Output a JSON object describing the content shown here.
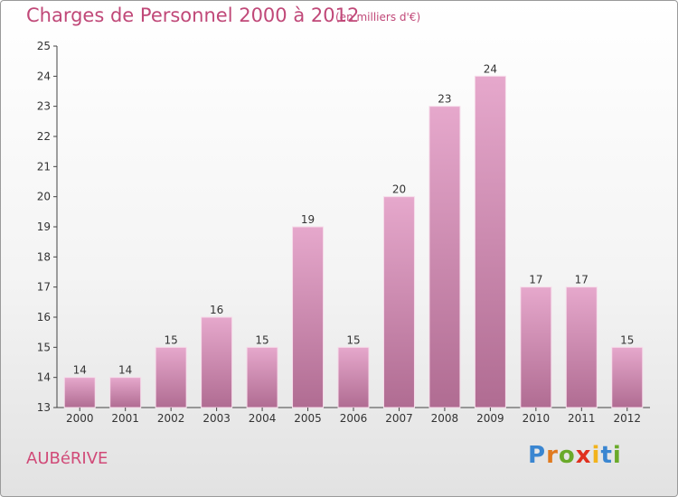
{
  "header": {
    "title": "Charges de Personnel 2000 à 2012",
    "unit_note": "(en milliers d'€)"
  },
  "footer": {
    "commune": "AUBéRIVE",
    "logo": [
      "P",
      "r",
      "o",
      "x",
      "i",
      "t",
      "i"
    ],
    "logo_colors": [
      "#3a86d1",
      "#e07a1f",
      "#6aaa2a",
      "#e0301e",
      "#f2b31c",
      "#3a86d1",
      "#6aaa2a"
    ]
  },
  "colors": {
    "bar_top": "#e6a8cc",
    "bar_bottom": "#b06c92",
    "label": "#333333"
  },
  "chart_data": {
    "type": "bar",
    "categories": [
      "2000",
      "2001",
      "2002",
      "2003",
      "2004",
      "2005",
      "2006",
      "2007",
      "2008",
      "2009",
      "2010",
      "2011",
      "2012"
    ],
    "values": [
      14,
      14,
      15,
      16,
      15,
      19,
      15,
      20,
      23,
      24,
      17,
      17,
      15
    ],
    "data_labels": [
      "14",
      "14",
      "15",
      "16",
      "15",
      "19",
      "15",
      "20",
      "23",
      "24",
      "17",
      "17",
      "15"
    ],
    "ylim": [
      13,
      25
    ],
    "yticks": [
      "13",
      "14",
      "15",
      "16",
      "17",
      "18",
      "19",
      "20",
      "21",
      "22",
      "23",
      "24",
      "25"
    ],
    "grid": false,
    "xlabel": "",
    "ylabel": ""
  }
}
